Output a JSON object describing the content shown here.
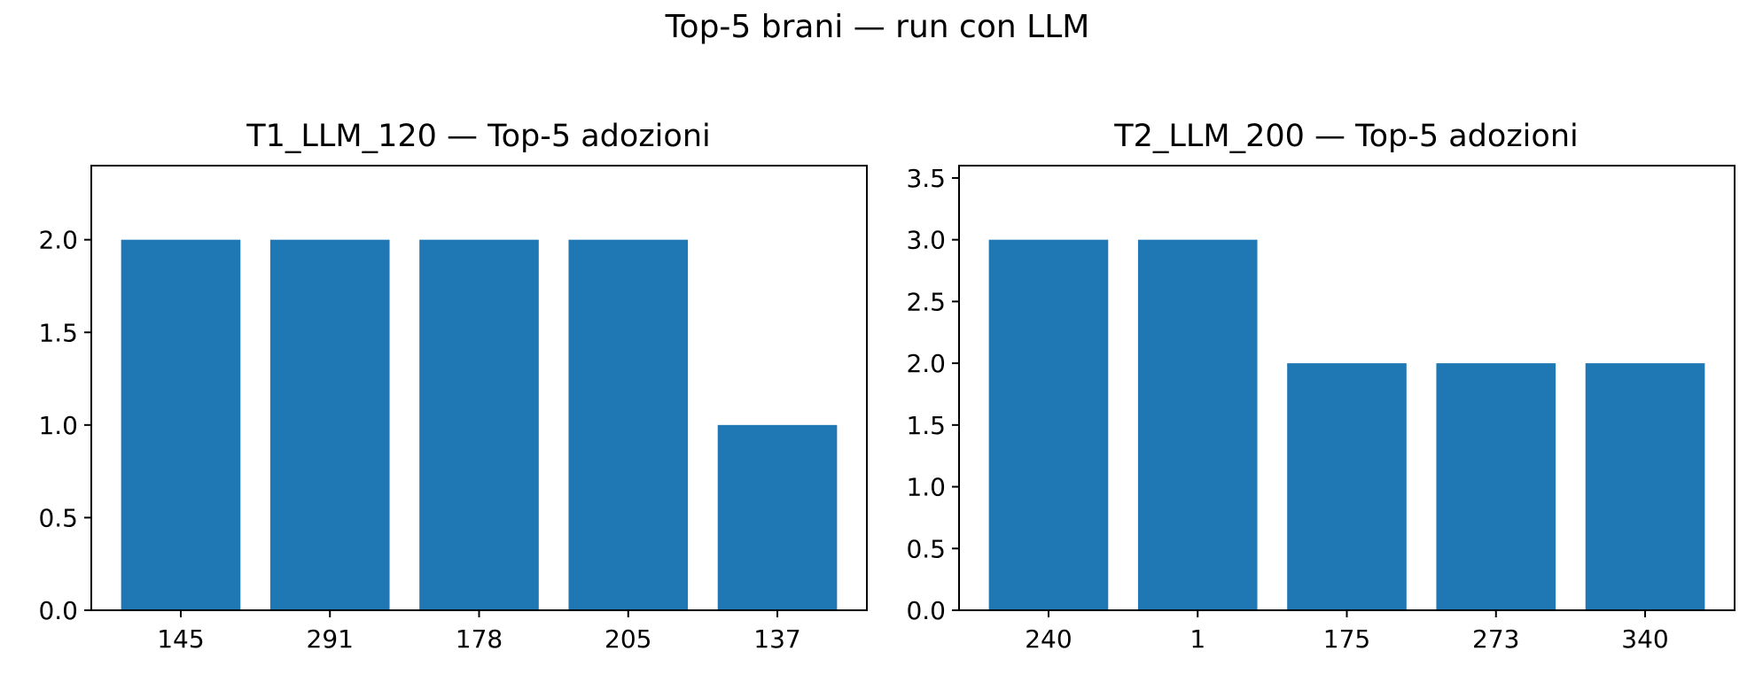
{
  "figure": {
    "suptitle": "Top-5 brani — run con LLM"
  },
  "chart_data": [
    {
      "type": "bar",
      "title": "T1_LLM_120 — Top-5 adozioni",
      "xlabel": "",
      "ylabel": "",
      "categories": [
        "145",
        "291",
        "178",
        "205",
        "137"
      ],
      "values": [
        2,
        2,
        2,
        2,
        1
      ],
      "ylim": [
        0,
        2.4
      ],
      "yticks": [
        0.0,
        0.5,
        1.0,
        1.5,
        2.0
      ],
      "ytick_labels": [
        "0.0",
        "0.5",
        "1.0",
        "1.5",
        "2.0"
      ],
      "bar_color": "#1f77b4",
      "grid": false,
      "legend": "none"
    },
    {
      "type": "bar",
      "title": "T2_LLM_200 — Top-5 adozioni",
      "xlabel": "",
      "ylabel": "",
      "categories": [
        "240",
        "1",
        "175",
        "273",
        "340"
      ],
      "values": [
        3,
        3,
        2,
        2,
        2
      ],
      "ylim": [
        0,
        3.6
      ],
      "yticks": [
        0.0,
        0.5,
        1.0,
        1.5,
        2.0,
        2.5,
        3.0,
        3.5
      ],
      "ytick_labels": [
        "0.0",
        "0.5",
        "1.0",
        "1.5",
        "2.0",
        "2.5",
        "3.0",
        "3.5"
      ],
      "bar_color": "#1f77b4",
      "grid": false,
      "legend": "none"
    }
  ]
}
